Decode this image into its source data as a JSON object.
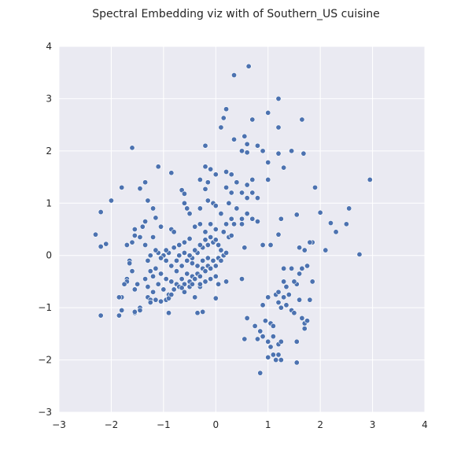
{
  "chart_data": {
    "type": "scatter",
    "title": "Spectral Embedding viz with of Southern_US cuisine",
    "xlabel": "",
    "ylabel": "",
    "xlim": [
      -3,
      4
    ],
    "ylim": [
      -3,
      4
    ],
    "xticks": [
      -3,
      -2,
      -1,
      0,
      1,
      2,
      3,
      4
    ],
    "yticks": [
      -3,
      -2,
      -1,
      0,
      1,
      2,
      3,
      4
    ],
    "grid": true,
    "colors": {
      "background": "#eaeaf2",
      "grid": "#ffffff",
      "marker": "#4c72b0",
      "marker_edge": "#ffffff"
    },
    "series": [
      {
        "values": [
          [
            0.35,
            3.45
          ],
          [
            0.63,
            3.62
          ],
          [
            -1.6,
            2.06
          ],
          [
            0.1,
            2.45
          ],
          [
            0.15,
            2.63
          ],
          [
            0.2,
            2.8
          ],
          [
            0.7,
            2.6
          ],
          [
            1.0,
            2.73
          ],
          [
            1.2,
            2.45
          ],
          [
            1.65,
            2.6
          ],
          [
            1.2,
            3.0
          ],
          [
            -0.2,
            2.1
          ],
          [
            0.35,
            2.22
          ],
          [
            0.5,
            2.0
          ],
          [
            0.55,
            2.28
          ],
          [
            0.6,
            2.13
          ],
          [
            0.8,
            2.1
          ],
          [
            0.9,
            2.0
          ],
          [
            1.2,
            1.95
          ],
          [
            1.45,
            2.0
          ],
          [
            1.68,
            1.95
          ],
          [
            1.0,
            1.78
          ],
          [
            1.3,
            1.68
          ],
          [
            0.6,
            1.97
          ],
          [
            -1.1,
            1.7
          ],
          [
            -0.85,
            1.58
          ],
          [
            -1.35,
            1.4
          ],
          [
            -1.45,
            1.28
          ],
          [
            -1.8,
            1.3
          ],
          [
            -2.0,
            1.05
          ],
          [
            -2.2,
            0.83
          ],
          [
            -2.3,
            0.4
          ],
          [
            -2.2,
            0.17
          ],
          [
            -2.1,
            0.22
          ],
          [
            -0.65,
            1.25
          ],
          [
            -0.6,
            1.18
          ],
          [
            -0.3,
            1.45
          ],
          [
            -0.2,
            1.7
          ],
          [
            -0.1,
            1.65
          ],
          [
            -0.15,
            1.4
          ],
          [
            -0.2,
            1.27
          ],
          [
            0.0,
            1.55
          ],
          [
            0.2,
            1.6
          ],
          [
            0.3,
            1.55
          ],
          [
            0.4,
            1.4
          ],
          [
            0.6,
            1.35
          ],
          [
            0.7,
            1.45
          ],
          [
            0.2,
            1.3
          ],
          [
            0.3,
            1.2
          ],
          [
            0.5,
            1.2
          ],
          [
            0.6,
            1.1
          ],
          [
            0.7,
            1.2
          ],
          [
            0.8,
            1.1
          ],
          [
            1.0,
            1.45
          ],
          [
            0.25,
            1.0
          ],
          [
            0.4,
            0.9
          ],
          [
            0.1,
            0.8
          ],
          [
            0.6,
            0.8
          ],
          [
            0.7,
            0.7
          ],
          [
            0.8,
            0.65
          ],
          [
            0.2,
            0.6
          ],
          [
            0.35,
            0.6
          ],
          [
            0.5,
            0.6
          ],
          [
            0.3,
            0.7
          ],
          [
            0.5,
            0.7
          ],
          [
            -1.3,
            1.05
          ],
          [
            -1.2,
            0.9
          ],
          [
            -1.15,
            0.72
          ],
          [
            -1.35,
            0.65
          ],
          [
            -1.55,
            0.5
          ],
          [
            -1.55,
            0.38
          ],
          [
            -1.7,
            0.2
          ],
          [
            -0.55,
            0.9
          ],
          [
            -0.6,
            1.0
          ],
          [
            -0.5,
            0.8
          ],
          [
            -0.3,
            0.9
          ],
          [
            -0.15,
            1.05
          ],
          [
            -0.05,
            1.0
          ],
          [
            0.0,
            0.95
          ],
          [
            -0.3,
            0.6
          ],
          [
            -0.1,
            0.6
          ],
          [
            0.0,
            0.5
          ],
          [
            0.15,
            0.45
          ],
          [
            -0.2,
            0.45
          ],
          [
            -0.4,
            0.55
          ],
          [
            -0.85,
            0.5
          ],
          [
            -0.8,
            0.45
          ],
          [
            -1.05,
            0.55
          ],
          [
            -1.4,
            0.55
          ],
          [
            -1.45,
            0.35
          ],
          [
            -1.6,
            0.25
          ],
          [
            -1.2,
            0.35
          ],
          [
            -1.35,
            0.2
          ],
          [
            1.25,
            0.7
          ],
          [
            1.55,
            0.78
          ],
          [
            2.0,
            0.82
          ],
          [
            2.2,
            0.62
          ],
          [
            2.3,
            0.45
          ],
          [
            2.5,
            0.6
          ],
          [
            2.55,
            0.9
          ],
          [
            2.75,
            0.02
          ],
          [
            2.95,
            1.45
          ],
          [
            1.9,
            1.3
          ],
          [
            1.85,
            0.25
          ],
          [
            1.8,
            0.25
          ],
          [
            1.2,
            0.4
          ],
          [
            1.7,
            0.1
          ],
          [
            2.1,
            0.1
          ],
          [
            1.6,
            0.15
          ],
          [
            0.9,
            0.2
          ],
          [
            1.05,
            0.2
          ],
          [
            0.55,
            0.15
          ],
          [
            -0.5,
            0.32
          ],
          [
            -0.6,
            0.25
          ],
          [
            -0.7,
            0.2
          ],
          [
            -0.8,
            0.15
          ],
          [
            -0.9,
            0.05
          ],
          [
            -1.0,
            0.0
          ],
          [
            -1.05,
            -0.05
          ],
          [
            -1.1,
            0.05
          ],
          [
            -0.95,
            -0.1
          ],
          [
            -0.85,
            -0.2
          ],
          [
            -0.75,
            -0.3
          ],
          [
            -0.65,
            -0.2
          ],
          [
            -0.55,
            -0.1
          ],
          [
            -0.45,
            -0.05
          ],
          [
            -0.35,
            0.05
          ],
          [
            -0.25,
            0.15
          ],
          [
            -0.15,
            0.2
          ],
          [
            -0.05,
            0.25
          ],
          [
            0.05,
            0.2
          ],
          [
            0.1,
            0.1
          ],
          [
            0.15,
            0.0
          ],
          [
            0.05,
            -0.05
          ],
          [
            -0.05,
            -0.1
          ],
          [
            -0.15,
            -0.2
          ],
          [
            -0.25,
            -0.25
          ],
          [
            -0.35,
            -0.35
          ],
          [
            -0.45,
            -0.4
          ],
          [
            -0.55,
            -0.35
          ],
          [
            -0.65,
            -0.45
          ],
          [
            -0.75,
            -0.55
          ],
          [
            -0.85,
            -0.5
          ],
          [
            -0.95,
            -0.45
          ],
          [
            -1.05,
            -0.35
          ],
          [
            -1.15,
            -0.25
          ],
          [
            -1.2,
            -0.4
          ],
          [
            -1.1,
            -0.55
          ],
          [
            -1.0,
            -0.65
          ],
          [
            -0.9,
            -0.75
          ],
          [
            -0.8,
            -0.65
          ],
          [
            -0.7,
            -0.6
          ],
          [
            -0.6,
            -0.55
          ],
          [
            -0.5,
            -0.5
          ],
          [
            -0.4,
            -0.45
          ],
          [
            -0.3,
            -0.4
          ],
          [
            -0.2,
            -0.3
          ],
          [
            -0.1,
            -0.25
          ],
          [
            0.0,
            -0.2
          ],
          [
            0.1,
            -0.1
          ],
          [
            0.2,
            0.05
          ],
          [
            0.25,
            0.35
          ],
          [
            0.3,
            0.38
          ],
          [
            -0.7,
            0.0
          ],
          [
            -0.6,
            0.05
          ],
          [
            -0.5,
            0.0
          ],
          [
            -0.4,
            0.1
          ],
          [
            -0.3,
            0.2
          ],
          [
            -0.2,
            0.3
          ],
          [
            -0.1,
            0.35
          ],
          [
            0.0,
            0.3
          ],
          [
            -0.75,
            -0.1
          ],
          [
            -0.45,
            -0.15
          ],
          [
            -0.35,
            -0.2
          ],
          [
            -0.25,
            -0.1
          ],
          [
            -0.15,
            -0.05
          ],
          [
            -0.95,
            0.1
          ],
          [
            -1.15,
            0.1
          ],
          [
            -1.25,
            0.0
          ],
          [
            -1.3,
            -0.1
          ],
          [
            -1.25,
            -0.3
          ],
          [
            -1.35,
            -0.45
          ],
          [
            -1.3,
            -0.6
          ],
          [
            -1.2,
            -0.7
          ],
          [
            -1.65,
            -0.1
          ],
          [
            -1.65,
            -0.15
          ],
          [
            -1.6,
            -0.3
          ],
          [
            -1.7,
            -0.45
          ],
          [
            -1.7,
            -0.5
          ],
          [
            -1.75,
            -0.55
          ],
          [
            -1.5,
            -0.55
          ],
          [
            -1.55,
            -0.65
          ],
          [
            -1.3,
            -0.8
          ],
          [
            -1.25,
            -0.85
          ],
          [
            -1.25,
            -0.9
          ],
          [
            -1.15,
            -0.85
          ],
          [
            -1.05,
            -0.88
          ],
          [
            -0.95,
            -0.85
          ],
          [
            -0.9,
            -0.82
          ],
          [
            -0.85,
            -0.75
          ],
          [
            -0.9,
            -1.1
          ],
          [
            -1.45,
            -1.0
          ],
          [
            -1.55,
            -1.1
          ],
          [
            -1.8,
            -0.8
          ],
          [
            -1.85,
            -0.8
          ],
          [
            -1.8,
            -1.05
          ],
          [
            -1.85,
            -1.15
          ],
          [
            -2.2,
            -1.15
          ],
          [
            -1.55,
            -1.08
          ],
          [
            -1.45,
            -1.05
          ],
          [
            -0.4,
            -0.8
          ],
          [
            -0.35,
            -1.1
          ],
          [
            -0.25,
            -1.08
          ],
          [
            0.0,
            -0.82
          ],
          [
            -0.5,
            -0.6
          ],
          [
            -0.6,
            -0.7
          ],
          [
            -0.65,
            -0.62
          ],
          [
            -0.3,
            -0.6
          ],
          [
            -0.2,
            -0.5
          ],
          [
            0.05,
            -0.55
          ],
          [
            0.2,
            -0.5
          ],
          [
            0.0,
            -0.4
          ],
          [
            -0.1,
            -0.45
          ],
          [
            -0.3,
            -0.55
          ],
          [
            -0.45,
            -0.55
          ],
          [
            0.5,
            -0.45
          ],
          [
            0.55,
            -1.6
          ],
          [
            0.6,
            -1.2
          ],
          [
            0.75,
            -1.35
          ],
          [
            0.8,
            -1.6
          ],
          [
            0.9,
            -0.95
          ],
          [
            0.85,
            -1.45
          ],
          [
            0.9,
            -1.55
          ],
          [
            0.95,
            -1.25
          ],
          [
            1.0,
            -0.8
          ],
          [
            1.05,
            -1.3
          ],
          [
            1.1,
            -1.35
          ],
          [
            1.0,
            -1.65
          ],
          [
            1.05,
            -1.75
          ],
          [
            1.1,
            -1.55
          ],
          [
            1.15,
            -0.75
          ],
          [
            1.2,
            -0.9
          ],
          [
            1.25,
            -1.0
          ],
          [
            1.2,
            -1.7
          ],
          [
            1.25,
            -1.65
          ],
          [
            1.3,
            -0.5
          ],
          [
            1.3,
            -0.8
          ],
          [
            1.35,
            -0.95
          ],
          [
            1.4,
            -0.75
          ],
          [
            1.45,
            -1.05
          ],
          [
            1.5,
            -1.1
          ],
          [
            1.55,
            -1.65
          ],
          [
            1.6,
            -0.85
          ],
          [
            1.65,
            -1.2
          ],
          [
            1.7,
            -1.4
          ],
          [
            1.7,
            -1.3
          ],
          [
            1.75,
            -1.25
          ],
          [
            1.55,
            -0.55
          ],
          [
            1.6,
            -0.35
          ],
          [
            1.45,
            -0.25
          ],
          [
            1.5,
            -0.5
          ],
          [
            1.35,
            -0.6
          ],
          [
            1.3,
            -0.25
          ],
          [
            1.2,
            -0.7
          ],
          [
            1.8,
            -0.85
          ],
          [
            1.85,
            -0.5
          ],
          [
            1.65,
            -0.25
          ],
          [
            1.75,
            -0.2
          ],
          [
            1.1,
            -1.9
          ],
          [
            1.0,
            -1.95
          ],
          [
            0.85,
            -2.25
          ],
          [
            1.15,
            -2.0
          ],
          [
            1.25,
            -2.0
          ],
          [
            1.55,
            -2.05
          ],
          [
            1.2,
            -1.9
          ]
        ]
      }
    ]
  }
}
